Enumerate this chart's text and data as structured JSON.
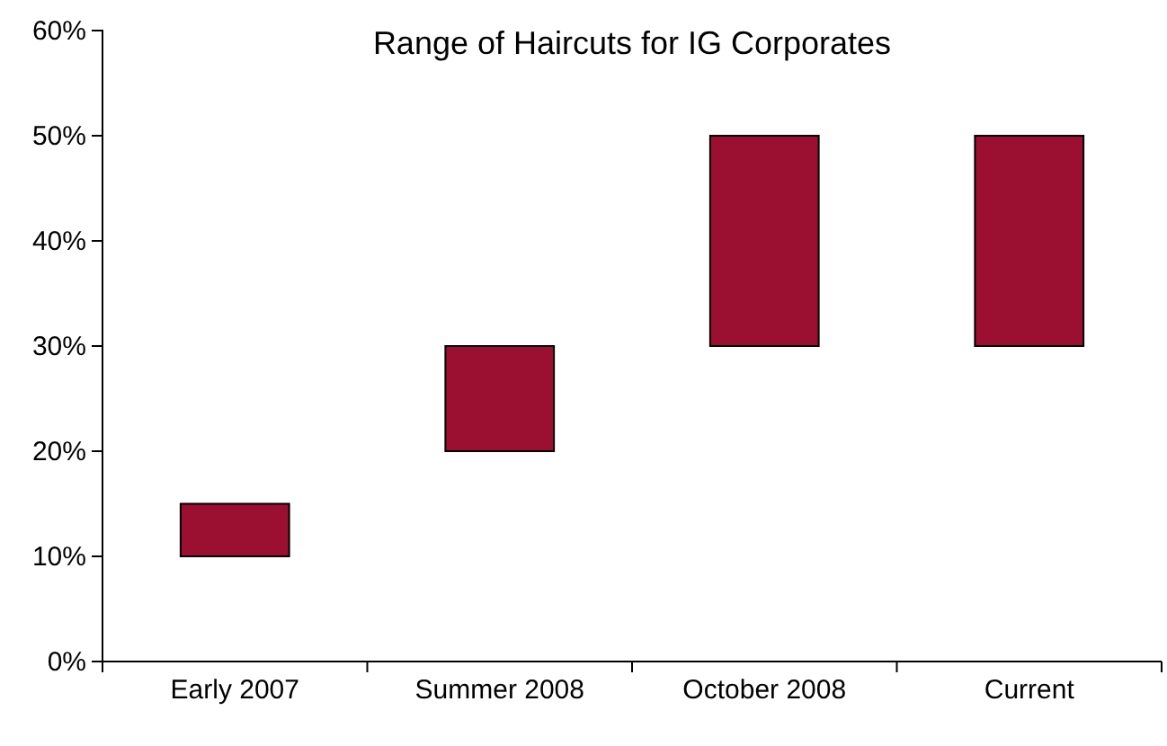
{
  "chart_data": {
    "type": "bar",
    "title": "Range of Haircuts for IG Corporates",
    "categories": [
      "Early 2007",
      "Summer 2008",
      "October 2008",
      "Current"
    ],
    "base": [
      10,
      20,
      30,
      30
    ],
    "values": [
      5,
      10,
      20,
      20
    ],
    "color": "#9b1030",
    "ylim": [
      0,
      60
    ],
    "yticks": [
      {
        "value": 0,
        "label": "0%"
      },
      {
        "value": 10,
        "label": "10%"
      },
      {
        "value": 20,
        "label": "20%"
      },
      {
        "value": 30,
        "label": "30%"
      },
      {
        "value": 40,
        "label": "40%"
      },
      {
        "value": 50,
        "label": "50%"
      },
      {
        "value": 60,
        "label": "60%"
      }
    ],
    "grid": false
  }
}
